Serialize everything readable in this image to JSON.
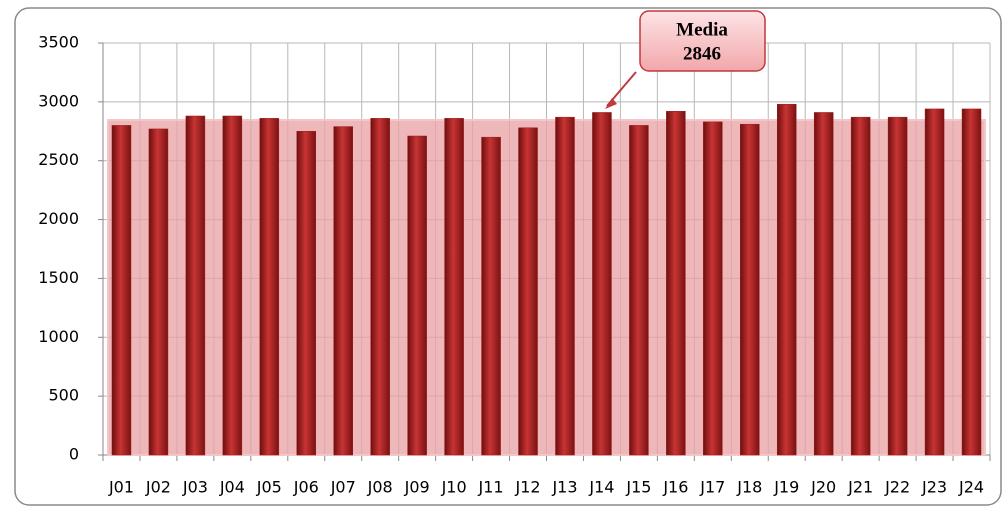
{
  "chart_data": {
    "type": "bar",
    "categories": [
      "J01",
      "J02",
      "J03",
      "J04",
      "J05",
      "J06",
      "J07",
      "J08",
      "J09",
      "J10",
      "J11",
      "J12",
      "J13",
      "J14",
      "J15",
      "J16",
      "J17",
      "J18",
      "J19",
      "J20",
      "J21",
      "J22",
      "J23",
      "J24"
    ],
    "values": [
      2800,
      2770,
      2880,
      2880,
      2860,
      2750,
      2790,
      2860,
      2710,
      2860,
      2700,
      2780,
      2870,
      2910,
      2800,
      2920,
      2830,
      2810,
      2980,
      2910,
      2870,
      2870,
      2940,
      2940
    ],
    "color": "#a01c1c",
    "ylim": [
      0,
      3500
    ],
    "yticks": [
      0,
      500,
      1000,
      1500,
      2000,
      2500,
      3000,
      3500
    ],
    "grid": true,
    "annotation": {
      "label": "Media",
      "value": 2846,
      "color": "#e8a0a4"
    }
  }
}
